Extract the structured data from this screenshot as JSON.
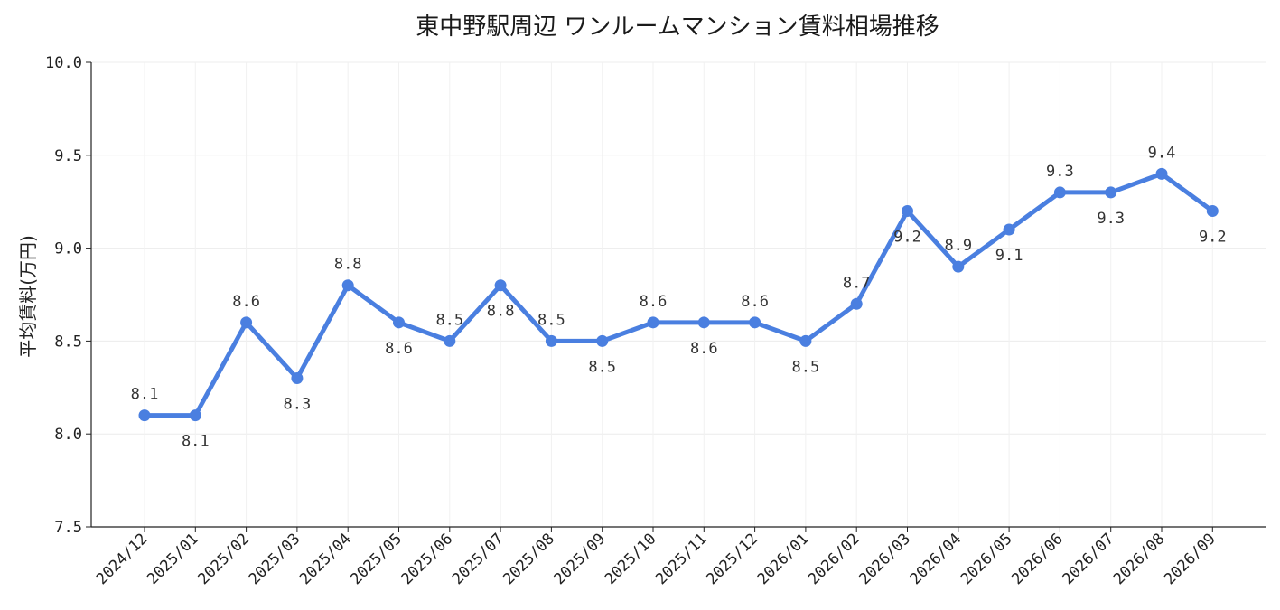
{
  "chart_data": {
    "type": "line",
    "title": "東中野駅周辺 ワンルームマンション賃料相場推移",
    "xlabel": "",
    "ylabel": "平均賃料(万円)",
    "ylim": [
      7.5,
      10.0
    ],
    "yticks": [
      "7.5",
      "8.0",
      "8.5",
      "9.0",
      "9.5",
      "10.0"
    ],
    "grid": true,
    "categories": [
      "2024/12",
      "2025/01",
      "2025/02",
      "2025/03",
      "2025/04",
      "2025/05",
      "2025/06",
      "2025/07",
      "2025/08",
      "2025/09",
      "2025/10",
      "2025/11",
      "2025/12",
      "2026/01",
      "2026/02",
      "2026/03",
      "2026/04",
      "2026/05",
      "2026/06",
      "2026/07",
      "2026/08",
      "2026/09"
    ],
    "series": [
      {
        "values": [
          8.1,
          8.1,
          8.6,
          8.3,
          8.8,
          8.6,
          8.5,
          8.8,
          8.5,
          8.5,
          8.6,
          8.6,
          8.6,
          8.5,
          8.7,
          9.2,
          8.9,
          9.1,
          9.3,
          9.3,
          9.4,
          9.2
        ],
        "data_labels": [
          "8.1",
          "8.1",
          "8.6",
          "8.3",
          "8.8",
          "8.6",
          "8.5",
          "8.8",
          "8.5",
          "8.5",
          "8.6",
          "8.6",
          "8.6",
          "8.5",
          "8.7",
          "9.2",
          "8.9",
          "9.1",
          "9.3",
          "9.3",
          "9.4",
          "9.2"
        ],
        "label_side": [
          "above",
          "below",
          "above",
          "below",
          "above",
          "below",
          "above",
          "below",
          "above",
          "below",
          "above",
          "below",
          "above",
          "below",
          "above",
          "below",
          "above",
          "below",
          "above",
          "below",
          "above",
          "below"
        ],
        "color": "#4a7fe0"
      }
    ]
  }
}
